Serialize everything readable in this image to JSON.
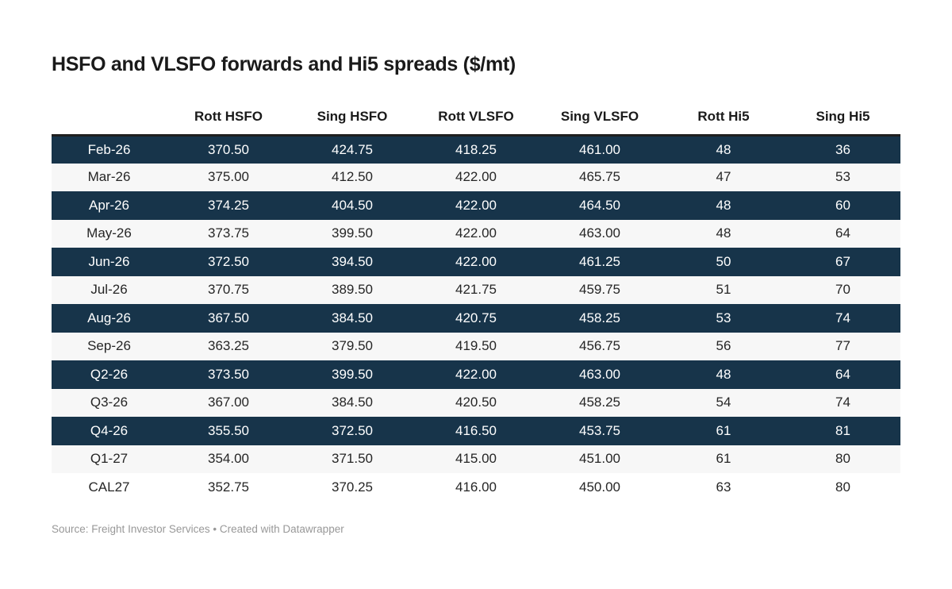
{
  "title": "HSFO and VLSFO forwards and Hi5 spreads ($/mt)",
  "footer": {
    "source_label": "Source:",
    "source_name": "Freight Investor Services",
    "separator": "•",
    "attribution": "Created with Datawrapper"
  },
  "colors": {
    "page_bg": "#ffffff",
    "title_color": "#1a1a1a",
    "header_color": "#1a1a1a",
    "header_border": "#1f1f1f",
    "dark_row_bg": "#17344a",
    "dark_row_text": "#ffffff",
    "light_row_bg": "#f7f7f7",
    "white_row_bg": "#ffffff",
    "body_text": "#262626",
    "footer_text": "#989898"
  },
  "chart_data": {
    "type": "table",
    "title": "HSFO and VLSFO forwards and Hi5 spreads ($/mt)",
    "units": "$/mt",
    "columns": [
      "",
      "Rott HSFO",
      "Sing HSFO",
      "Rott VLSFO",
      "Sing VLSFO",
      "Rott Hi5",
      "Sing Hi5"
    ],
    "rows": [
      {
        "label": "Feb-26",
        "values": [
          "370.50",
          "424.75",
          "418.25",
          "461.00",
          "48",
          "36"
        ],
        "bg": "dark"
      },
      {
        "label": "Mar-26",
        "values": [
          "375.00",
          "412.50",
          "422.00",
          "465.75",
          "47",
          "53"
        ],
        "bg": "light"
      },
      {
        "label": "Apr-26",
        "values": [
          "374.25",
          "404.50",
          "422.00",
          "464.50",
          "48",
          "60"
        ],
        "bg": "dark"
      },
      {
        "label": "May-26",
        "values": [
          "373.75",
          "399.50",
          "422.00",
          "463.00",
          "48",
          "64"
        ],
        "bg": "light"
      },
      {
        "label": "Jun-26",
        "values": [
          "372.50",
          "394.50",
          "422.00",
          "461.25",
          "50",
          "67"
        ],
        "bg": "dark"
      },
      {
        "label": "Jul-26",
        "values": [
          "370.75",
          "389.50",
          "421.75",
          "459.75",
          "51",
          "70"
        ],
        "bg": "light"
      },
      {
        "label": "Aug-26",
        "values": [
          "367.50",
          "384.50",
          "420.75",
          "458.25",
          "53",
          "74"
        ],
        "bg": "dark"
      },
      {
        "label": "Sep-26",
        "values": [
          "363.25",
          "379.50",
          "419.50",
          "456.75",
          "56",
          "77"
        ],
        "bg": "light"
      },
      {
        "label": "Q2-26",
        "values": [
          "373.50",
          "399.50",
          "422.00",
          "463.00",
          "48",
          "64"
        ],
        "bg": "dark"
      },
      {
        "label": "Q3-26",
        "values": [
          "367.00",
          "384.50",
          "420.50",
          "458.25",
          "54",
          "74"
        ],
        "bg": "light"
      },
      {
        "label": "Q4-26",
        "values": [
          "355.50",
          "372.50",
          "416.50",
          "453.75",
          "61",
          "81"
        ],
        "bg": "dark"
      },
      {
        "label": "Q1-27",
        "values": [
          "354.00",
          "371.50",
          "415.00",
          "451.00",
          "61",
          "80"
        ],
        "bg": "light"
      },
      {
        "label": "CAL27",
        "values": [
          "352.75",
          "370.25",
          "416.00",
          "450.00",
          "63",
          "80"
        ],
        "bg": "white"
      }
    ]
  }
}
